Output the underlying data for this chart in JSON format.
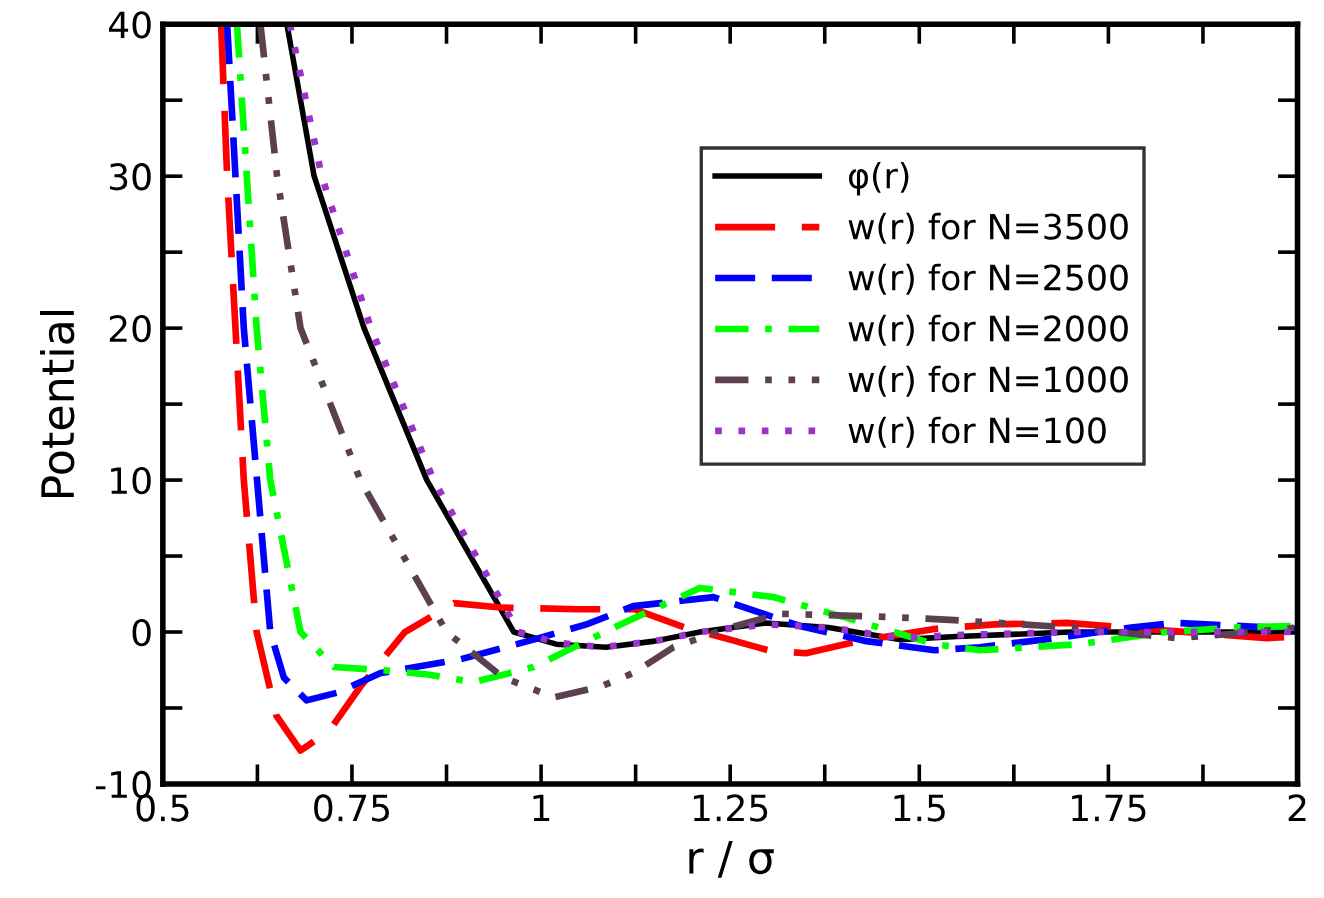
{
  "chart_data": {
    "type": "line",
    "xlabel": "r / σ",
    "ylabel": "Potential",
    "xlim": [
      0.5,
      2
    ],
    "ylim": [
      -10,
      40
    ],
    "xticks": [
      0.5,
      {
        "value": 0.625,
        "label": null
      },
      0.75,
      {
        "value": 0.875,
        "label": null
      },
      1,
      {
        "value": 1.125,
        "label": null
      },
      1.25,
      {
        "value": 1.375,
        "label": null
      },
      1.5,
      {
        "value": 1.625,
        "label": null
      },
      1.75,
      {
        "value": 1.875,
        "label": null
      },
      2
    ],
    "yticks": [
      -10,
      {
        "value": -5,
        "label": null
      },
      0,
      {
        "value": 5,
        "label": null
      },
      10,
      {
        "value": 15,
        "label": null
      },
      20,
      {
        "value": 25,
        "label": null
      },
      30,
      {
        "value": 35,
        "label": null
      },
      40
    ],
    "grid": false,
    "legend": "top right",
    "marker": "none",
    "series": [
      {
        "name": "φ(r)",
        "color": "#000000",
        "line_style": "solid",
        "x": [
          0.664,
          0.7,
          0.766,
          0.849,
          0.964,
          1.02,
          1.086,
          1.15,
          1.21,
          1.297,
          1.38,
          1.474,
          1.55,
          1.7,
          1.85,
          2.0
        ],
        "values": [
          40,
          30,
          20,
          10,
          0,
          -0.8,
          -1,
          -0.6,
          0,
          0.6,
          0.3,
          -0.5,
          -0.3,
          0,
          0,
          0
        ]
      },
      {
        "name": "w(r) for N=3500",
        "color": "#ff0000",
        "line_style": "longdash",
        "x": [
          0.577,
          0.585,
          0.607,
          0.624,
          0.65,
          0.682,
          0.72,
          0.761,
          0.82,
          0.885,
          0.95,
          1.05,
          1.123,
          1.19,
          1.25,
          1.3,
          1.35,
          1.42,
          1.52,
          1.6,
          1.695,
          1.8,
          1.96,
          2.0
        ],
        "values": [
          40,
          30,
          10,
          0,
          -5.5,
          -7.8,
          -6.5,
          -3.6,
          0,
          1.9,
          1.6,
          1.5,
          1.5,
          0.3,
          -0.5,
          -1.2,
          -1.4,
          -0.6,
          0.2,
          0.5,
          0.6,
          0.2,
          -0.4,
          -0.3
        ]
      },
      {
        "name": "w(r) for N=2500",
        "color": "#0000ff",
        "line_style": "dashed",
        "x": [
          0.585,
          0.607,
          0.642,
          0.66,
          0.69,
          0.73,
          0.788,
          0.893,
          0.99,
          1.06,
          1.122,
          1.228,
          1.342,
          1.43,
          1.52,
          1.58,
          1.68,
          1.78,
          1.84,
          1.92,
          2.0
        ],
        "values": [
          40,
          20,
          0,
          -3,
          -4.5,
          -4,
          -2.7,
          -1.8,
          -0.5,
          0.5,
          1.7,
          2.3,
          0.4,
          -0.6,
          -1.2,
          -1.0,
          -0.4,
          0.3,
          0.6,
          0.4,
          0.2
        ]
      },
      {
        "name": "w(r) for N=2000",
        "color": "#00ff00",
        "line_style": "dashdot",
        "x": [
          0.598,
          0.624,
          0.642,
          0.682,
          0.726,
          0.788,
          0.85,
          0.911,
          0.99,
          1.105,
          1.21,
          1.307,
          1.413,
          1.52,
          1.58,
          1.712,
          1.826,
          1.92,
          2.0
        ],
        "values": [
          40,
          20,
          10,
          0,
          -2.3,
          -2.5,
          -2.8,
          -3.3,
          -2.3,
          0.5,
          2.9,
          2.3,
          0.8,
          -0.8,
          -1.2,
          -0.8,
          0,
          0.3,
          0.4
        ]
      },
      {
        "name": "w(r) for N=1000",
        "color": "#5c4050",
        "line_style": "dashdotdot",
        "x": [
          0.629,
          0.651,
          0.682,
          0.761,
          0.875,
          0.95,
          1.017,
          1.078,
          1.122,
          1.175,
          1.25,
          1.316,
          1.456,
          1.54,
          1.7,
          1.84,
          1.92,
          2.0
        ],
        "values": [
          40,
          30,
          20,
          10,
          0,
          -3,
          -4.3,
          -3.6,
          -2.7,
          -1.0,
          0.3,
          1.2,
          1.0,
          0.8,
          0.3,
          -0.4,
          -0.1,
          0.3
        ]
      },
      {
        "name": "w(r) for N=100",
        "color": "#9933cc",
        "line_style": "dotted",
        "x": [
          0.668,
          0.71,
          0.775,
          0.858,
          0.97,
          1.02,
          1.08,
          1.15,
          1.21,
          1.297,
          1.38,
          1.474,
          1.55,
          1.7,
          1.85,
          2.0
        ],
        "values": [
          40,
          30,
          20,
          10,
          0,
          -0.7,
          -1,
          -0.6,
          0,
          0.5,
          0.3,
          -0.4,
          -0.2,
          0,
          0,
          0
        ]
      }
    ]
  }
}
